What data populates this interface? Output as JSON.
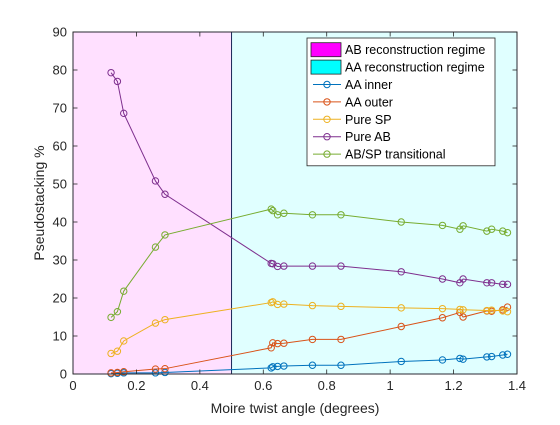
{
  "chart_data": {
    "type": "line",
    "xlabel": "Moire twist angle (degrees)",
    "ylabel": "Pseudostacking %",
    "xlim": [
      0,
      1.4
    ],
    "ylim": [
      0,
      90
    ],
    "xticks": [
      0,
      0.2,
      0.4,
      0.6,
      0.8,
      1,
      1.2,
      1.4
    ],
    "xtick_labels": [
      "0",
      "0.2",
      "0.4",
      "0.6",
      "0.8",
      "1",
      "1.2",
      "1.4"
    ],
    "yticks": [
      0,
      10,
      20,
      30,
      40,
      50,
      60,
      70,
      80,
      90
    ],
    "ytick_labels": [
      "0",
      "10",
      "20",
      "30",
      "40",
      "50",
      "60",
      "70",
      "80",
      "90"
    ],
    "grid": false,
    "legend_position": "top-right",
    "regions": [
      {
        "name": "AB reconstruction regime",
        "x_range": [
          0,
          0.5
        ],
        "color": "#ff00ff"
      },
      {
        "name": "AA reconstruction regime",
        "x_range": [
          0.5,
          1.4
        ],
        "color": "#00ffff"
      }
    ],
    "x": [
      0.12,
      0.14,
      0.16,
      0.26,
      0.29,
      0.625,
      0.63,
      0.645,
      0.665,
      0.755,
      0.845,
      1.035,
      1.165,
      1.22,
      1.23,
      1.305,
      1.32,
      1.355,
      1.37
    ],
    "series": [
      {
        "name": "AA inner",
        "color": "#0072bd",
        "values": [
          0.1,
          0.2,
          0.3,
          0.3,
          0.4,
          1.6,
          1.9,
          2.0,
          2.1,
          2.3,
          2.3,
          3.3,
          3.7,
          4.1,
          3.9,
          4.5,
          4.6,
          5.0,
          5.2
        ]
      },
      {
        "name": "AA outer",
        "color": "#d95319",
        "values": [
          0.3,
          0.4,
          0.6,
          1.3,
          1.4,
          6.9,
          8.2,
          8.0,
          8.1,
          9.1,
          9.1,
          12.5,
          14.8,
          16.2,
          15.0,
          16.6,
          16.5,
          16.9,
          17.6
        ]
      },
      {
        "name": "Pure SP",
        "color": "#edb120",
        "values": [
          5.4,
          6.0,
          8.7,
          13.4,
          14.3,
          18.8,
          19.0,
          18.3,
          18.4,
          18.0,
          17.8,
          17.4,
          17.2,
          17.0,
          16.9,
          16.7,
          16.8,
          16.6,
          16.4
        ]
      },
      {
        "name": "Pure AB",
        "color": "#7e2f8e",
        "values": [
          79.3,
          77.0,
          68.6,
          50.8,
          47.3,
          29.1,
          29.0,
          28.3,
          28.4,
          28.4,
          28.4,
          26.9,
          25.0,
          24.0,
          25.0,
          24.0,
          24.0,
          23.6,
          23.6
        ]
      },
      {
        "name": "AB/SP transitional",
        "color": "#77ac30",
        "values": [
          14.9,
          16.4,
          21.8,
          33.4,
          36.6,
          43.4,
          43.0,
          41.9,
          42.3,
          41.9,
          41.9,
          40.0,
          39.1,
          38.1,
          39.0,
          37.6,
          38.1,
          37.6,
          37.2
        ]
      }
    ]
  }
}
